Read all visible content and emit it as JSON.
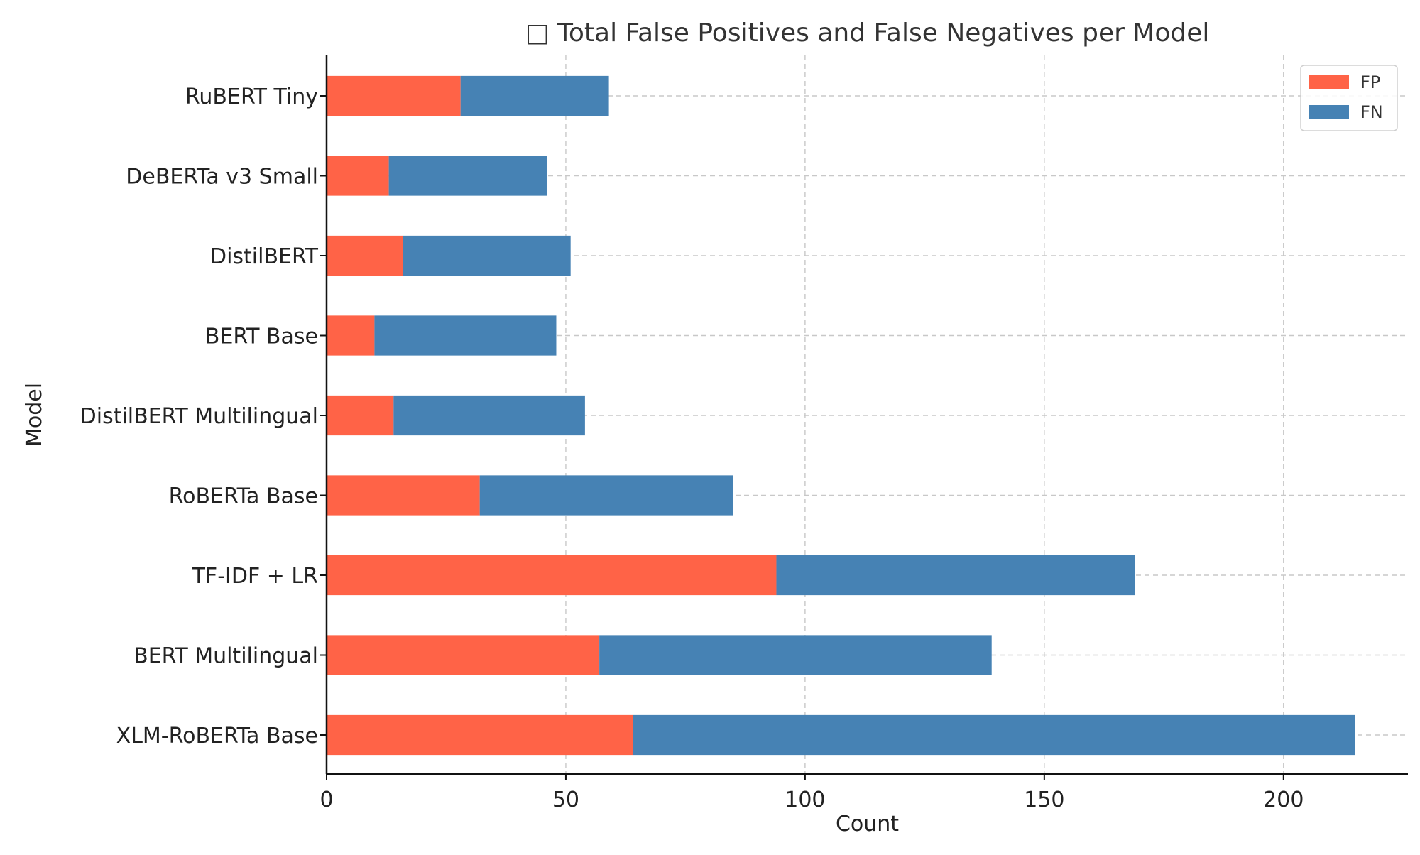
{
  "chart_data": {
    "type": "bar",
    "orientation": "horizontal",
    "stacked": true,
    "title": "□ Total False Positives and False Negatives per Model",
    "xlabel": "Count",
    "ylabel": "Model",
    "categories": [
      "XLM-RoBERTa Base",
      "BERT Multilingual",
      "TF-IDF + LR",
      "RoBERTa Base",
      "DistilBERT Multilingual",
      "BERT Base",
      "DistilBERT",
      "DeBERTa v3 Small",
      "RuBERT Tiny"
    ],
    "series": [
      {
        "name": "FP",
        "color": "#FF6347",
        "values": [
          64,
          57,
          94,
          32,
          14,
          10,
          16,
          13,
          28
        ]
      },
      {
        "name": "FN",
        "color": "#4682B4",
        "values": [
          151,
          82,
          75,
          53,
          40,
          38,
          35,
          33,
          31
        ]
      }
    ],
    "xlim": [
      0,
      226
    ],
    "xticks": [
      0,
      50,
      100,
      150,
      200
    ],
    "grid": true,
    "legend_position": "top-right"
  }
}
